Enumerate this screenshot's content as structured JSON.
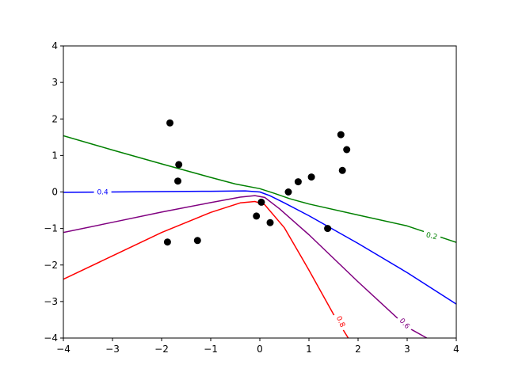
{
  "chart_data": {
    "type": "line",
    "title": "",
    "xlabel": "",
    "ylabel": "",
    "xlim": [
      -4,
      4
    ],
    "ylim": [
      -4,
      4
    ],
    "x_ticks": [
      -4,
      -3,
      -2,
      -1,
      0,
      1,
      2,
      3,
      4
    ],
    "y_ticks": [
      -4,
      -3,
      -2,
      -1,
      0,
      1,
      2,
      3,
      4
    ],
    "x_tick_labels": [
      "−4",
      "−3",
      "−2",
      "−1",
      "0",
      "1",
      "2",
      "3",
      "4"
    ],
    "y_tick_labels": [
      "−4",
      "−3",
      "−2",
      "−1",
      "0",
      "1",
      "2",
      "3",
      "4"
    ],
    "grid": false,
    "scatter": {
      "color": "#000000",
      "points": [
        [
          -1.83,
          1.89
        ],
        [
          -1.65,
          0.75
        ],
        [
          -1.67,
          0.3
        ],
        [
          -1.88,
          -1.37
        ],
        [
          -1.27,
          -1.33
        ],
        [
          -0.07,
          -0.66
        ],
        [
          0.03,
          -0.28
        ],
        [
          0.21,
          -0.84
        ],
        [
          0.58,
          0.0
        ],
        [
          0.78,
          0.28
        ],
        [
          1.05,
          0.41
        ],
        [
          1.38,
          -1.0
        ],
        [
          1.65,
          1.57
        ],
        [
          1.77,
          1.16
        ],
        [
          1.68,
          0.59
        ]
      ]
    },
    "series": [
      {
        "label": "0.2",
        "color": "#008000",
        "points": [
          [
            -4,
            1.54
          ],
          [
            -3,
            1.15
          ],
          [
            -2,
            0.77
          ],
          [
            -1,
            0.4
          ],
          [
            -0.5,
            0.22
          ],
          [
            0,
            0.09
          ],
          [
            0.3,
            -0.04
          ],
          [
            0.6,
            -0.18
          ],
          [
            1,
            -0.33
          ],
          [
            2,
            -0.63
          ],
          [
            3,
            -0.93
          ],
          [
            4,
            -1.38
          ]
        ]
      },
      {
        "label": "0.4",
        "color": "#0000ff",
        "points": [
          [
            -4,
            -0.01
          ],
          [
            -3,
            0.0
          ],
          [
            -2,
            0.01
          ],
          [
            -1,
            0.02
          ],
          [
            -0.3,
            0.03
          ],
          [
            0,
            0.0
          ],
          [
            0.2,
            -0.1
          ],
          [
            0.5,
            -0.3
          ],
          [
            1,
            -0.65
          ],
          [
            2,
            -1.41
          ],
          [
            3,
            -2.21
          ],
          [
            4,
            -3.07
          ]
        ]
      },
      {
        "label": "0.6",
        "color": "#800080",
        "points": [
          [
            -4,
            -1.11
          ],
          [
            -3,
            -0.83
          ],
          [
            -2,
            -0.55
          ],
          [
            -1,
            -0.29
          ],
          [
            -0.4,
            -0.14
          ],
          [
            -0.1,
            -0.1
          ],
          [
            0.1,
            -0.15
          ],
          [
            0.4,
            -0.46
          ],
          [
            1,
            -1.17
          ],
          [
            2,
            -2.46
          ],
          [
            3,
            -3.7
          ],
          [
            3.4,
            -4.0
          ]
        ]
      },
      {
        "label": "0.8",
        "color": "#ff0000",
        "points": [
          [
            -4,
            -2.39
          ],
          [
            -3,
            -1.75
          ],
          [
            -2,
            -1.11
          ],
          [
            -1,
            -0.56
          ],
          [
            -0.4,
            -0.3
          ],
          [
            -0.1,
            -0.26
          ],
          [
            0.1,
            -0.35
          ],
          [
            0.5,
            -0.98
          ],
          [
            1,
            -2.14
          ],
          [
            1.5,
            -3.35
          ],
          [
            1.8,
            -4.0
          ]
        ]
      }
    ],
    "contour_labels": [
      {
        "text": "0.2",
        "color": "#008000",
        "x": 3.5,
        "y": -1.2,
        "rotation": 14
      },
      {
        "text": "0.4",
        "color": "#0000ff",
        "x": -3.2,
        "y": 0.0,
        "rotation": 0
      },
      {
        "text": "0.6",
        "color": "#800080",
        "x": 2.95,
        "y": -3.6,
        "rotation": 48
      },
      {
        "text": "0.8",
        "color": "#ff0000",
        "x": 1.65,
        "y": -3.55,
        "rotation": 66
      }
    ]
  }
}
